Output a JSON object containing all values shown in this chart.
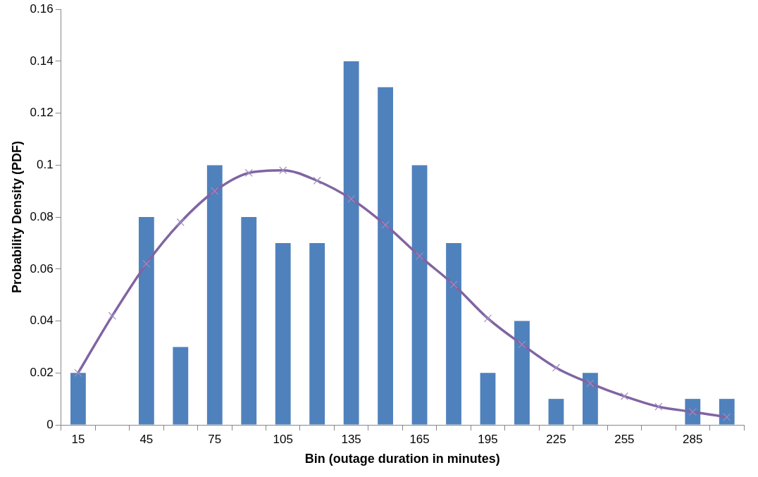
{
  "chart_data": {
    "type": "bar",
    "xlabel": "Bin (outage duration in minutes)",
    "ylabel": "Probability Density (PDF)",
    "categories": [
      "15",
      null,
      "45",
      null,
      "75",
      null,
      "105",
      null,
      "135",
      null,
      "165",
      null,
      "195",
      null,
      "225",
      null,
      "255",
      null,
      "285",
      null
    ],
    "series": [
      {
        "color": "#4f81bd",
        "values": [
          0.02,
          0,
          0.08,
          0.03,
          0.1,
          0.08,
          0.07,
          0.07,
          0.14,
          0.13,
          0.1,
          0.07,
          0.02,
          0.04,
          0.01,
          0.02,
          0,
          0,
          0.01,
          0.01
        ]
      },
      {
        "type": "line",
        "color": "#8064a2",
        "marker": "cross",
        "values": [
          0.02,
          0.042,
          0.062,
          0.078,
          0.09,
          0.097,
          0.098,
          0.094,
          0.087,
          0.077,
          0.065,
          0.054,
          0.041,
          0.031,
          0.022,
          0.016,
          0.011,
          0.007,
          0.005,
          0.003
        ]
      }
    ],
    "ylim": [
      0,
      0.16
    ],
    "yticks": [
      0,
      0.02,
      0.04,
      0.06,
      0.08,
      0.1,
      0.12,
      0.14,
      0.16
    ],
    "grid": false,
    "legend": false
  }
}
